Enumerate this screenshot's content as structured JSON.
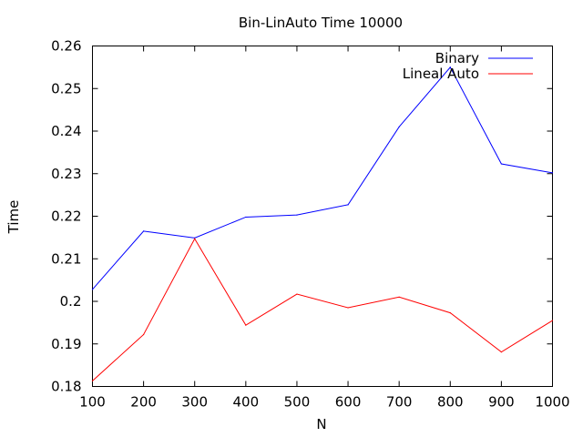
{
  "chart_data": {
    "type": "line",
    "title": "Bin-LinAuto Time 10000",
    "xlabel": "N",
    "ylabel": "Time",
    "x": [
      100,
      200,
      300,
      400,
      500,
      600,
      700,
      800,
      900,
      1000
    ],
    "xlim": [
      100,
      1000
    ],
    "ylim": [
      0.18,
      0.26
    ],
    "xticks": [
      "100",
      "200",
      "300",
      "400",
      "500",
      "600",
      "700",
      "800",
      "900",
      "1000"
    ],
    "yticks": [
      "0.18",
      "0.19",
      "0.2",
      "0.21",
      "0.22",
      "0.23",
      "0.24",
      "0.25",
      "0.26"
    ],
    "grid": false,
    "legend_position": "top-right",
    "series": [
      {
        "name": "Binary",
        "color": "#0000ff",
        "values": [
          0.2028,
          0.2165,
          0.2149,
          0.2198,
          0.2203,
          0.2227,
          0.241,
          0.255,
          0.2323,
          0.2302
        ]
      },
      {
        "name": "Lineal Auto",
        "color": "#ff0000",
        "values": [
          0.1813,
          0.1922,
          0.2147,
          0.1944,
          0.2017,
          0.1985,
          0.201,
          0.1973,
          0.1881,
          0.1955
        ]
      }
    ]
  }
}
